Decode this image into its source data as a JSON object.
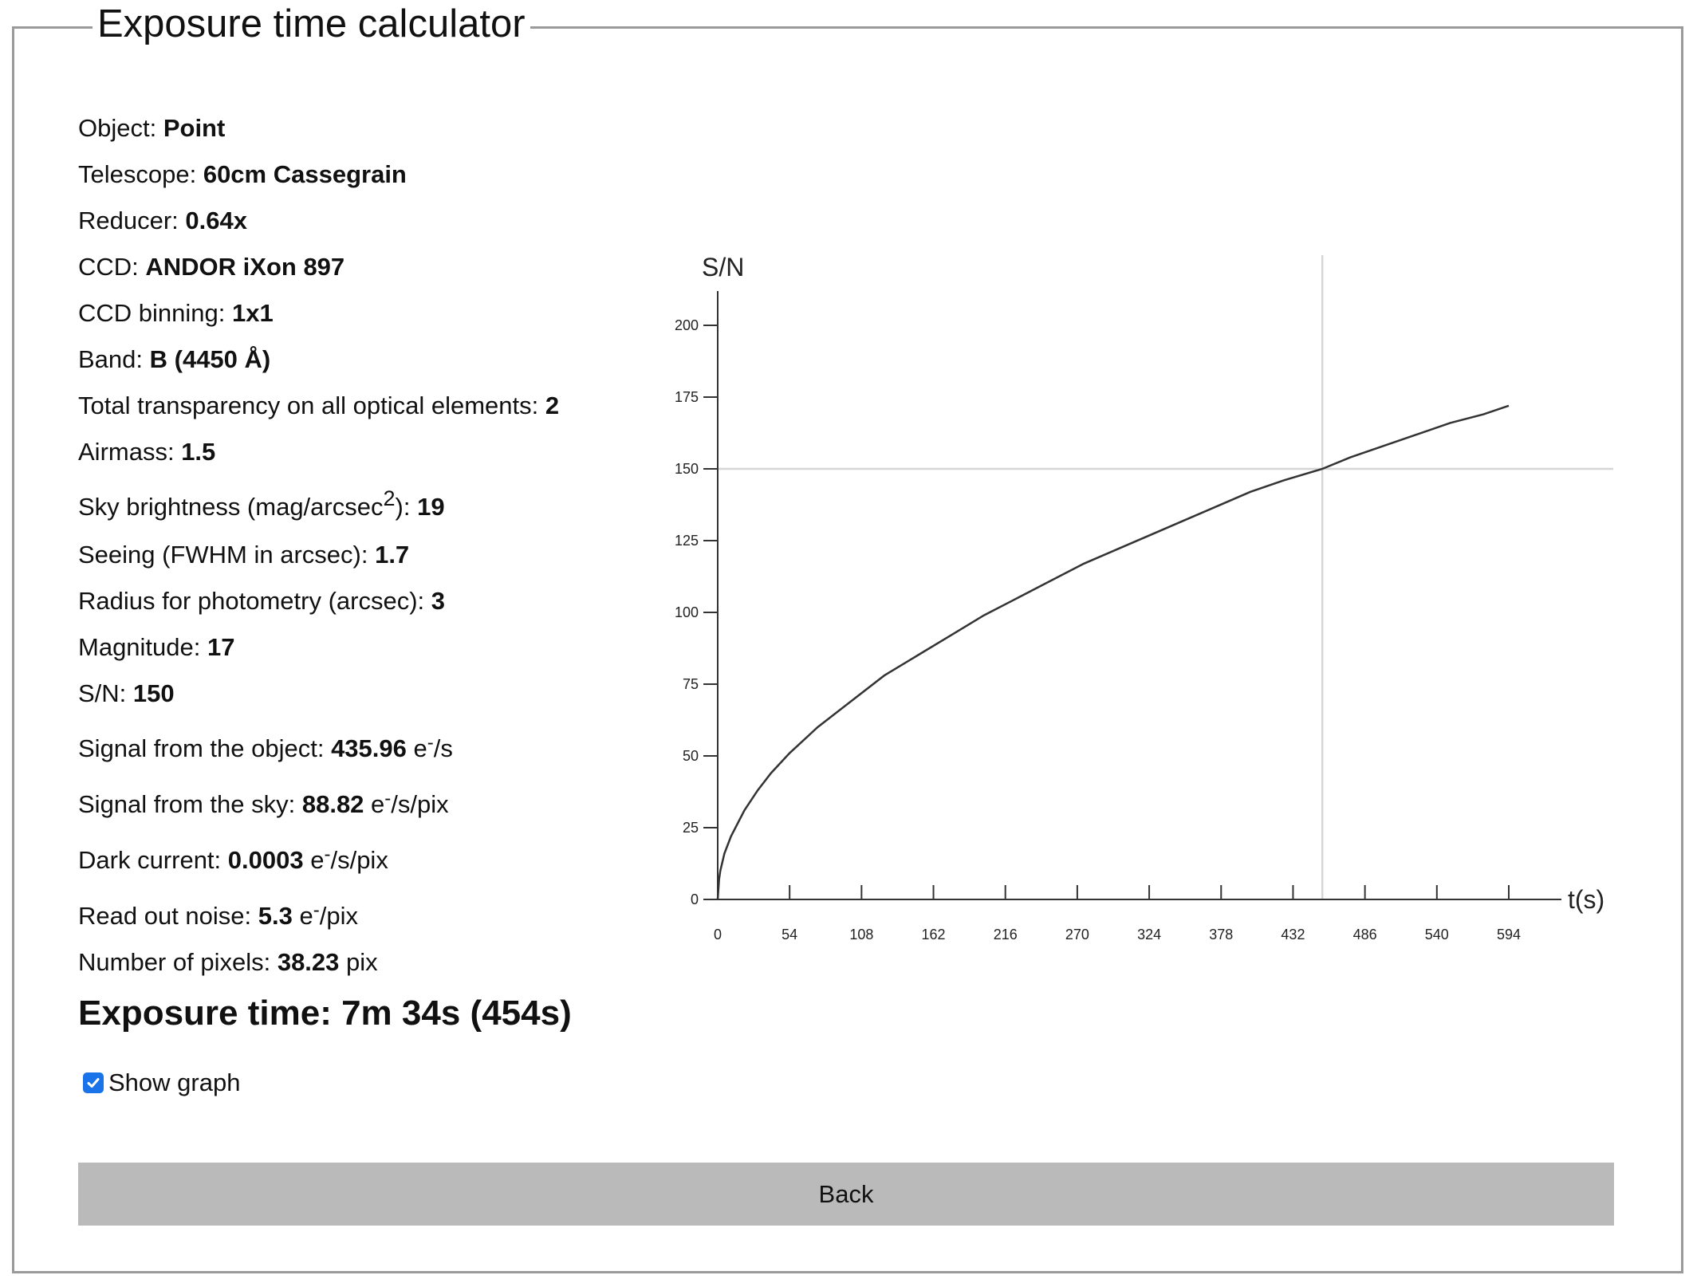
{
  "window": {
    "title": "Exposure time calculator"
  },
  "params": [
    {
      "label": "Object: ",
      "value": "Point"
    },
    {
      "label": "Telescope: ",
      "value": "60cm Cassegrain"
    },
    {
      "label": "Reducer: ",
      "value": "0.64x"
    },
    {
      "label": "CCD: ",
      "value": "ANDOR iXon 897"
    },
    {
      "label": "CCD binning: ",
      "value": "1x1"
    },
    {
      "label": "Band: ",
      "value": "B (4450 Å)"
    },
    {
      "label": "Total transparency on all optical elements: ",
      "value": "2"
    },
    {
      "label": "Airmass: ",
      "value": "1.5"
    }
  ],
  "sky": {
    "label_pre": "Sky brightness (mag/arcsec",
    "sup": "2",
    "label_post": "): ",
    "value": "19"
  },
  "params2": [
    {
      "label": "Seeing (FWHM in arcsec): ",
      "value": "1.7"
    },
    {
      "label": "Radius for photometry (arcsec): ",
      "value": "3"
    },
    {
      "label": "Magnitude: ",
      "value": "17"
    },
    {
      "label": "S/N: ",
      "value": "150"
    }
  ],
  "signals": [
    {
      "label": "Signal from the object: ",
      "value": "435.96",
      "unit_pre": " e",
      "unit_sup": "-",
      "unit_post": "/s"
    },
    {
      "label": "Signal from the sky: ",
      "value": "88.82",
      "unit_pre": " e",
      "unit_sup": "-",
      "unit_post": "/s/pix"
    },
    {
      "label": "Dark current: ",
      "value": "0.0003",
      "unit_pre": " e",
      "unit_sup": "-",
      "unit_post": "/s/pix"
    },
    {
      "label": "Read out noise: ",
      "value": "5.3",
      "unit_pre": " e",
      "unit_sup": "-",
      "unit_post": "/pix"
    }
  ],
  "pixels": {
    "label": "Number of pixels: ",
    "value": "38.23",
    "unit": " pix"
  },
  "exposure": {
    "text": "Exposure time: 7m 34s (454s)"
  },
  "show_graph": {
    "label": "Show graph",
    "checked": true
  },
  "back_button": {
    "label": "Back"
  },
  "chart_data": {
    "type": "line",
    "xlabel": "t(s)",
    "ylabel": "S/N",
    "xlim": [
      0,
      594
    ],
    "ylim": [
      0,
      200
    ],
    "x_ticks": [
      0,
      54,
      108,
      162,
      216,
      270,
      324,
      378,
      432,
      486,
      540,
      594
    ],
    "y_ticks": [
      0,
      25,
      50,
      75,
      100,
      125,
      150,
      175,
      200
    ],
    "target_sn": 150,
    "target_time": 454,
    "series": [
      {
        "x": [
          0,
          1,
          2,
          5,
          10,
          20,
          30,
          40,
          54,
          75,
          100,
          125,
          150,
          175,
          200,
          225,
          250,
          275,
          300,
          325,
          350,
          375,
          400,
          425,
          454,
          475,
          500,
          525,
          550,
          575,
          594
        ],
        "values": [
          0,
          7,
          10,
          16,
          22,
          31,
          38,
          44,
          51,
          60,
          69,
          78,
          85,
          92,
          99,
          105,
          111,
          117,
          122,
          127,
          132,
          137,
          142,
          146,
          150,
          154,
          158,
          162,
          166,
          169,
          172
        ]
      }
    ],
    "grid": false
  }
}
